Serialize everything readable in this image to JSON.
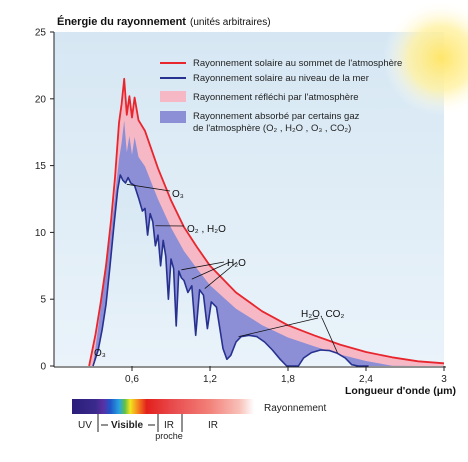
{
  "chart_data": {
    "type": "area",
    "title": "Énergie du rayonnement",
    "title_suffix": "(unités arbitraires)",
    "xlabel": "Longueur d'onde (μm)",
    "xlim": [
      0,
      3
    ],
    "ylim": [
      0,
      25
    ],
    "x_ticks": [
      "0,6",
      "1,2",
      "1,8",
      "2,4",
      "3"
    ],
    "y_ticks": [
      "0",
      "5",
      "10",
      "15",
      "20",
      "25"
    ],
    "series": [
      {
        "name": "Rayonnement solaire au sommet de l'atmosphère",
        "color": "#e8262e",
        "points": [
          [
            0.27,
            0
          ],
          [
            0.32,
            2.4
          ],
          [
            0.36,
            4.8
          ],
          [
            0.4,
            7.5
          ],
          [
            0.44,
            11
          ],
          [
            0.47,
            14.2
          ],
          [
            0.5,
            18.2
          ],
          [
            0.52,
            19.6
          ],
          [
            0.54,
            21.5
          ],
          [
            0.56,
            18.8
          ],
          [
            0.58,
            20.2
          ],
          [
            0.6,
            18.6
          ],
          [
            0.62,
            20.1
          ],
          [
            0.65,
            18.4
          ],
          [
            0.7,
            17.6
          ],
          [
            0.75,
            16.2
          ],
          [
            0.8,
            14.8
          ],
          [
            0.9,
            12.4
          ],
          [
            1.0,
            10.4
          ],
          [
            1.1,
            8.9
          ],
          [
            1.2,
            7.5
          ],
          [
            1.4,
            5.5
          ],
          [
            1.6,
            4.1
          ],
          [
            1.8,
            3.05
          ],
          [
            2.0,
            2.3
          ],
          [
            2.2,
            1.6
          ],
          [
            2.4,
            1.05
          ],
          [
            2.6,
            0.65
          ],
          [
            2.8,
            0.35
          ],
          [
            3.0,
            0.2
          ]
        ]
      },
      {
        "name": "Rayonnement solaire au niveau de la mer",
        "color": "#27318f",
        "points": [
          [
            0.3,
            0
          ],
          [
            0.34,
            1.2
          ],
          [
            0.37,
            2.7
          ],
          [
            0.4,
            4.6
          ],
          [
            0.43,
            7.4
          ],
          [
            0.46,
            10.4
          ],
          [
            0.49,
            13.2
          ],
          [
            0.51,
            14.3
          ],
          [
            0.53,
            13.9
          ],
          [
            0.55,
            13.7
          ],
          [
            0.57,
            14.1
          ],
          [
            0.59,
            13.7
          ],
          [
            0.62,
            13.5
          ],
          [
            0.65,
            12.6
          ],
          [
            0.68,
            11.6
          ],
          [
            0.7,
            11.8
          ],
          [
            0.72,
            9.8
          ],
          [
            0.74,
            11.4
          ],
          [
            0.76,
            10.8
          ],
          [
            0.78,
            9.0
          ],
          [
            0.8,
            9.8
          ],
          [
            0.82,
            7.5
          ],
          [
            0.84,
            9.4
          ],
          [
            0.86,
            8.2
          ],
          [
            0.88,
            5.0
          ],
          [
            0.9,
            8.0
          ],
          [
            0.92,
            7.3
          ],
          [
            0.94,
            3.0
          ],
          [
            0.96,
            7.1
          ],
          [
            0.98,
            6.6
          ],
          [
            1.0,
            6.4
          ],
          [
            1.03,
            5.5
          ],
          [
            1.06,
            6.0
          ],
          [
            1.09,
            2.3
          ],
          [
            1.12,
            5.7
          ],
          [
            1.15,
            5.3
          ],
          [
            1.18,
            2.8
          ],
          [
            1.21,
            4.8
          ],
          [
            1.25,
            4.4
          ],
          [
            1.3,
            1.3
          ],
          [
            1.33,
            0.5
          ],
          [
            1.36,
            0.8
          ],
          [
            1.4,
            1.8
          ],
          [
            1.44,
            2.2
          ],
          [
            1.5,
            2.3
          ],
          [
            1.56,
            2.2
          ],
          [
            1.62,
            1.8
          ],
          [
            1.68,
            1.2
          ],
          [
            1.74,
            0.5
          ],
          [
            1.79,
            0
          ],
          [
            1.88,
            0
          ],
          [
            1.92,
            0.6
          ],
          [
            1.98,
            1.0
          ],
          [
            2.05,
            1.2
          ],
          [
            2.12,
            1.15
          ],
          [
            2.18,
            0.95
          ],
          [
            2.24,
            0.6
          ],
          [
            2.29,
            0.1
          ],
          [
            2.34,
            0
          ],
          [
            2.42,
            0
          ]
        ]
      },
      {
        "name": "Rayonnement réfléchi par l'atmosphère",
        "color": "#f6b8c4"
      },
      {
        "name": "Rayonnement absorbé par certains gaz de l'atmosphère (O₂ , H₂O , O₃ , CO₂)",
        "name_lines": [
          "Rayonnement absorbé par certains gaz",
          "de l'atmosphère (O₂ , H₂O , O₃ , CO₂)"
        ],
        "color": "#8d8fd6"
      }
    ],
    "annotations": [
      {
        "text": "O₃",
        "x": 0.54,
        "y": 13.6
      },
      {
        "text": "O₂ , H₂O",
        "x": 0.76,
        "y": 10.6
      },
      {
        "text": "H₂O",
        "x": 0.95,
        "y": 7.2
      },
      {
        "text": "H₂O, CO₂",
        "x": 1.62,
        "y": 1.9
      },
      {
        "text": "O₃",
        "x": 0.38,
        "y": 1.2
      }
    ],
    "legend_position": "top-right",
    "grid": false,
    "spectrum": {
      "label": "Rayonnement",
      "bands": [
        "UV",
        "Visible",
        "IR proche",
        "IR"
      ],
      "ir_lines": [
        "IR",
        "proche"
      ]
    }
  }
}
